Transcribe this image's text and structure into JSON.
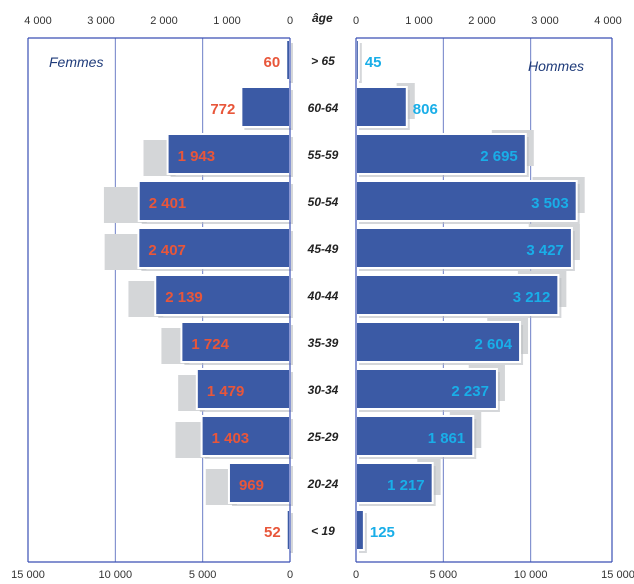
{
  "chart_data": {
    "type": "bar",
    "layout": "population-pyramid",
    "age_header": "âge",
    "categories": [
      "> 65",
      "60-64",
      "55-59",
      "50-54",
      "45-49",
      "40-44",
      "35-39",
      "30-34",
      "25-29",
      "20-24",
      "< 19"
    ],
    "series": [
      {
        "name": "Femmes",
        "side": "left",
        "label_color": "#e8563a",
        "values": [
          60,
          772,
          1943,
          2401,
          2407,
          2139,
          1724,
          1479,
          1403,
          969,
          52
        ],
        "value_labels": [
          "60",
          "772",
          "1 943",
          "2 401",
          "2 407",
          "2 139",
          "1 724",
          "1 479",
          "1 403",
          "969",
          "52"
        ]
      },
      {
        "name": "Hommes",
        "side": "right",
        "label_color": "#19aee8",
        "values": [
          45,
          806,
          2695,
          3503,
          3427,
          3212,
          2604,
          2237,
          1861,
          1217,
          125
        ],
        "value_labels": [
          "45",
          "806",
          "2 695",
          "3 503",
          "3 427",
          "3 212",
          "2 604",
          "2 237",
          "1 861",
          "1 217",
          "125"
        ]
      }
    ],
    "top_axis": {
      "ticks_left": [
        "4 000",
        "3 000",
        "2 000",
        "1 000",
        "0"
      ],
      "ticks_right": [
        "0",
        "1 000",
        "2 000",
        "3 000",
        "4 000"
      ],
      "range": [
        0,
        4000
      ]
    },
    "bottom_axis": {
      "ticks_left": [
        "15 000",
        "10 000",
        "5 000",
        "0"
      ],
      "ticks_right": [
        "0",
        "5 000",
        "10 000",
        "15 000"
      ],
      "range": [
        0,
        15000
      ]
    },
    "grid": true,
    "colors": {
      "bar": "#3b5aa5",
      "bar_border": "#ffffff",
      "ghost": "#d4d6d8",
      "grid": "#6d7fc7",
      "axis": "#3a4fb5"
    }
  }
}
